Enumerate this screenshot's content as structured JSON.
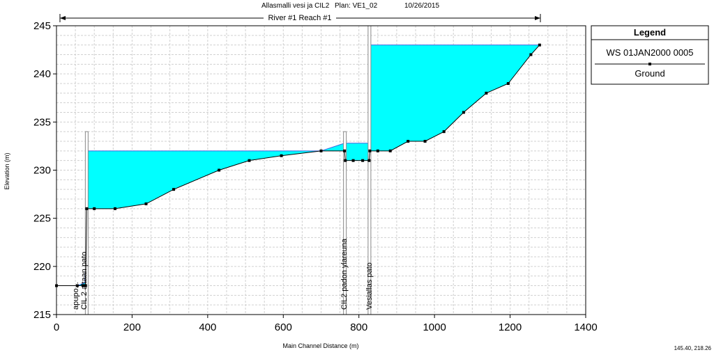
{
  "header": {
    "project": "Allasmalli vesi ja CIL2",
    "plan": "Plan: VE1_02",
    "date": "10/26/2015",
    "reach": "River #1 Reach #1"
  },
  "status": {
    "cursor": "145.40, 218.26"
  },
  "colors": {
    "water_fill": "#00ffff",
    "water_line": "#4169e1",
    "ground": "#000000",
    "grid": "#d0d0d0",
    "structure": "#888888"
  },
  "chart_data": {
    "type": "area",
    "xlabel": "Main Channel Distance (m)",
    "ylabel": "Elevation (m)",
    "xlim": [
      0,
      1400
    ],
    "ylim": [
      215,
      245
    ],
    "xticks": [
      0,
      200,
      400,
      600,
      800,
      1000,
      1200,
      1400
    ],
    "yticks": [
      215,
      220,
      225,
      230,
      235,
      240,
      245
    ],
    "grid": true,
    "legend": {
      "title": "Legend",
      "placement": "right",
      "entries": [
        {
          "name": "WS  01JAN2000 0005",
          "kind": "ws"
        },
        {
          "name": "Ground",
          "kind": "ground"
        }
      ]
    },
    "ground": [
      [
        0,
        218
      ],
      [
        55,
        218
      ],
      [
        70,
        218
      ],
      [
        77,
        218
      ],
      [
        80,
        226
      ],
      [
        100,
        226
      ],
      [
        155,
        226
      ],
      [
        237,
        226.5
      ],
      [
        310,
        228
      ],
      [
        430,
        230
      ],
      [
        510,
        231
      ],
      [
        595,
        231.5
      ],
      [
        700,
        232
      ],
      [
        762,
        232
      ],
      [
        764,
        231
      ],
      [
        785,
        231
      ],
      [
        810,
        231
      ],
      [
        827,
        231
      ],
      [
        829,
        232
      ],
      [
        850,
        232
      ],
      [
        883,
        232
      ],
      [
        930,
        233
      ],
      [
        975,
        233
      ],
      [
        1025,
        234
      ],
      [
        1077,
        236
      ],
      [
        1137,
        238
      ],
      [
        1195,
        239
      ],
      [
        1255,
        242
      ],
      [
        1278,
        243
      ]
    ],
    "water_surface": [
      [
        0,
        218
      ],
      [
        55,
        218
      ],
      [
        75,
        218.3
      ],
      [
        77,
        220
      ],
      [
        80,
        232
      ],
      [
        700,
        232
      ],
      [
        762,
        232.8
      ],
      [
        764,
        232.8
      ],
      [
        827,
        232.8
      ],
      [
        829,
        243
      ],
      [
        1278,
        243
      ]
    ],
    "structures": [
      {
        "x": 80,
        "top": 234
      },
      {
        "x": 763,
        "top": 234
      },
      {
        "x": 828,
        "top": 245
      }
    ],
    "annotations": [
      {
        "x": 50,
        "text": "apupo..."
      },
      {
        "x": 72,
        "text": "CIL 2 altaan pato"
      },
      {
        "x": 760,
        "text": "CIL2 padon ylareuna"
      },
      {
        "x": 826,
        "text": "Vesiallas pato"
      }
    ]
  }
}
